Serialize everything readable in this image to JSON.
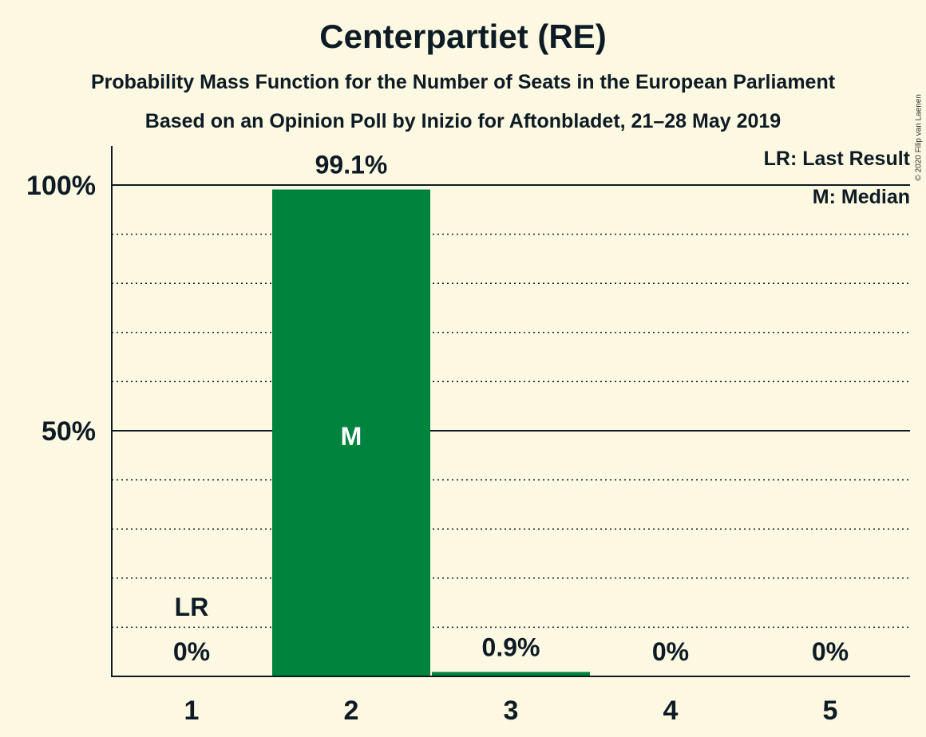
{
  "header": {
    "title": "Centerpartiet (RE)",
    "subtitle1": "Probability Mass Function for the Number of Seats in the European Parliament",
    "subtitle2": "Based on an Opinion Poll by Inizio for Aftonbladet, 21–28 May 2019",
    "copyright": "© 2020 Filip van Laenen"
  },
  "legend": {
    "last_result": "LR: Last Result",
    "median": "M: Median"
  },
  "colors": {
    "background": "#fdf8e2",
    "bar": "#00843d",
    "text": "#0d1b24"
  },
  "chart_data": {
    "type": "bar",
    "categories": [
      "1",
      "2",
      "3",
      "4",
      "5"
    ],
    "values": [
      0,
      99.1,
      0.9,
      0,
      0
    ],
    "value_labels": [
      "0%",
      "99.1%",
      "0.9%",
      "0%",
      "0%"
    ],
    "ylim": [
      0,
      108
    ],
    "yticks": [
      {
        "value": 50,
        "label": "50%"
      },
      {
        "value": 100,
        "label": "100%"
      }
    ],
    "minor_gridlines": [
      10,
      20,
      30,
      40,
      60,
      70,
      80,
      90
    ],
    "last_result_category": "1",
    "last_result_marker": "LR",
    "median_category": "2",
    "median_marker": "M",
    "grid": true,
    "legend_position": "top-right"
  }
}
